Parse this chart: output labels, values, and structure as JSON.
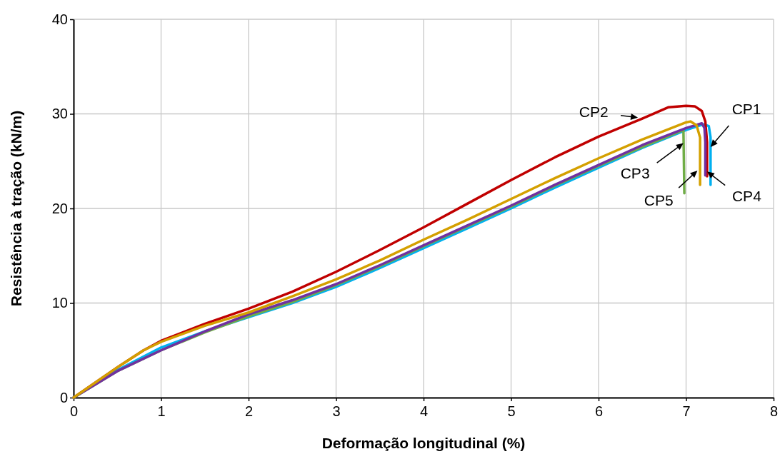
{
  "chart_data": {
    "type": "line",
    "xlabel": "Deformação longitudinal (%)",
    "ylabel": "Resistência à tração (kN/m)",
    "xlim": [
      0,
      8
    ],
    "xticks": [
      0,
      1,
      2,
      3,
      4,
      5,
      6,
      7,
      8
    ],
    "ylim": [
      0,
      40
    ],
    "yticks": [
      0,
      10,
      20,
      30,
      40
    ],
    "grid": true,
    "marker": "none",
    "line_style": "solid",
    "series": [
      {
        "color": "#00b0f0",
        "x": [
          0,
          0.5,
          1,
          1.5,
          2,
          2.5,
          3,
          3.5,
          4,
          4.5,
          5,
          5.5,
          6,
          6.5,
          7,
          7.2,
          7.26,
          7.28,
          7.28
        ],
        "values": [
          0,
          2.9,
          5.3,
          7.0,
          8.5,
          10.0,
          11.7,
          13.7,
          15.8,
          17.9,
          20.0,
          22.2,
          24.3,
          26.4,
          28.3,
          28.9,
          28.7,
          27.5,
          22.5
        ]
      },
      {
        "color": "#c00000",
        "x": [
          0,
          0.5,
          0.8,
          1,
          1.5,
          2,
          2.5,
          3,
          3.5,
          4,
          4.5,
          5,
          5.5,
          6,
          6.5,
          6.8,
          7,
          7.1,
          7.18,
          7.22,
          7.24,
          7.24
        ],
        "values": [
          0,
          3.2,
          5.0,
          6.0,
          7.8,
          9.4,
          11.2,
          13.3,
          15.6,
          18.0,
          20.5,
          23.0,
          25.4,
          27.6,
          29.5,
          30.7,
          30.85,
          30.8,
          30.3,
          29.2,
          27,
          23.4
        ]
      },
      {
        "color": "#70ad47",
        "x": [
          0,
          0.5,
          1,
          1.5,
          2,
          2.5,
          3,
          3.5,
          4,
          4.5,
          5,
          5.5,
          6,
          6.5,
          6.97,
          6.98
        ],
        "values": [
          0,
          2.8,
          5.0,
          6.9,
          8.6,
          10.1,
          11.9,
          13.9,
          16.0,
          18.1,
          20.2,
          22.4,
          24.5,
          26.5,
          28.3,
          21.6
        ]
      },
      {
        "color": "#7030a0",
        "x": [
          0,
          0.5,
          1,
          1.5,
          2,
          2.5,
          3,
          3.5,
          4,
          4.5,
          5,
          5.5,
          6,
          6.5,
          7,
          7.18,
          7.21,
          7.22,
          7.22
        ],
        "values": [
          0,
          2.8,
          5.0,
          7.0,
          8.8,
          10.3,
          12.0,
          14.0,
          16.1,
          18.2,
          20.3,
          22.5,
          24.6,
          26.7,
          28.5,
          29.0,
          28.5,
          27,
          23.5
        ]
      },
      {
        "color": "#d4a000",
        "x": [
          0,
          0.5,
          0.8,
          1,
          1.5,
          2,
          2.5,
          3,
          3.5,
          4,
          4.5,
          5,
          5.5,
          6,
          6.5,
          7,
          7.05,
          7.12,
          7.16,
          7.16
        ],
        "values": [
          0,
          3.2,
          5.0,
          5.9,
          7.6,
          9.0,
          10.7,
          12.5,
          14.5,
          16.7,
          18.8,
          21.0,
          23.2,
          25.3,
          27.3,
          29.1,
          29.2,
          28.8,
          27.5,
          22.5
        ]
      }
    ],
    "annotations": [
      {
        "text": "CP2",
        "x": 6.45,
        "y": 29.6
      },
      {
        "text": "CP1",
        "x": 7.28,
        "y": 26.5
      },
      {
        "text": "CP3",
        "x": 6.97,
        "y": 26.9
      },
      {
        "text": "CP5",
        "x": 7.13,
        "y": 24
      },
      {
        "text": "CP4",
        "x": 7.24,
        "y": 23.9
      }
    ]
  }
}
